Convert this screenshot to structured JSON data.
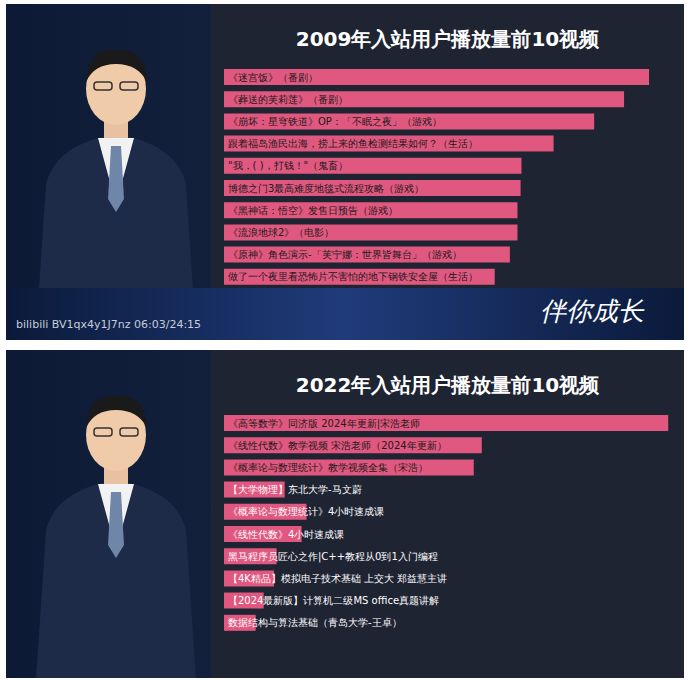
{
  "chart_data": [
    {
      "type": "bar",
      "orientation": "horizontal",
      "title": "2009年入站用户播放量前10视频",
      "categories": [
        "《迷宫饭》（番剧）",
        "《葬送的芙莉莲》（番剧）",
        "《崩坏：星穹铁道》OP：「不眠之夜」（游戏）",
        "跟着福岛渔民出海，捞上来的鱼检测结果如何？（生活）",
        "\"我，( )，打钱！\"（鬼畜）",
        "博德之门3最高难度地毯式流程攻略（游戏）",
        "《黑神话：悟空》发售日预告（游戏）",
        "《流浪地球2》（电影）",
        "《原神》角色演示-「芙宁娜：世界皆舞台」（游戏）",
        "做了一个夜里看恐怖片不害怕的地下钢铁安全屋（生活）"
      ],
      "values": [
        95.3,
        89.7,
        83,
        73.9,
        66.7,
        66.5,
        65.8,
        65.8,
        64.1,
        60.7
      ],
      "color": "#e0587f",
      "xlim": [
        0,
        100
      ],
      "tick_labels": false
    },
    {
      "type": "bar",
      "orientation": "horizontal",
      "title": "2022年入站用户播放量前10视频",
      "categories": [
        "《高等数学》同济版 2024年更新|宋浩老师",
        "《线性代数》教学视频 宋浩老师（2024年更新）",
        "《概率论与数理统计》教学视频全集（宋浩）",
        "【大学物理】东北大学-马文蔚",
        "《概率论与数理统计》4小时速成课",
        "《线性代数》4小时速成课",
        "黑马程序员匠心之作|C++教程从0到1入门编程",
        "【4K精品】模拟电子技术基础 上交大 郑益慧主讲",
        "【2024最新版】计算机二级MS office真题讲解",
        "数据结构与算法基础（青岛大学-王卓）"
      ],
      "values": [
        99.6,
        57.8,
        56,
        13.6,
        18.5,
        17.4,
        11.8,
        11.2,
        8.9,
        7.1
      ],
      "color": "#e0587f",
      "xlim": [
        0,
        100
      ],
      "tick_labels": false
    }
  ],
  "watermark": "bilibili BV1qx4y1J7nz 06:03/24:15",
  "slogan": "伴你成长"
}
